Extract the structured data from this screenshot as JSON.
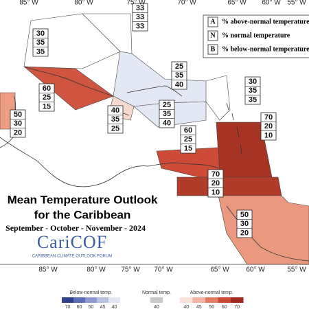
{
  "axis_labels": {
    "top": [
      "85° W",
      "80° W",
      "75° W",
      "70° W",
      "65° W",
      "60° W",
      "55° W"
    ],
    "bottom": [
      "85° W",
      "80° W",
      "75° W",
      "70° W",
      "65° W",
      "60° W",
      "55° W"
    ]
  },
  "key": [
    {
      "letter": "A",
      "text": "% above-normal temperature"
    },
    {
      "letter": "N",
      "text": "% normal temperature"
    },
    {
      "letter": "B",
      "text": "% below-normal temperature"
    }
  ],
  "title": {
    "line1": "Mean Temperature Outlook",
    "line2": "for the Caribbean",
    "period": "September - October - November - 2024"
  },
  "logo": {
    "name": "CariCOF",
    "subtitle": "CARIBBEAN CLIMATE OUTLOOK FORUM"
  },
  "regions": [
    {
      "values": [
        "30",
        "35",
        "35"
      ],
      "color": "#ffffff"
    },
    {
      "values": [
        "33",
        "33",
        "33"
      ],
      "color": "#ffffff"
    },
    {
      "values": [
        "25",
        "35",
        "40"
      ],
      "color": "#e4e8f5"
    },
    {
      "values": [
        "30",
        "35",
        "35"
      ],
      "color": "#ffffff"
    },
    {
      "values": [
        "60",
        "25",
        "15"
      ],
      "color": "#cf5540"
    },
    {
      "values": [
        "40",
        "35",
        "25"
      ],
      "color": "#f7d9ce"
    },
    {
      "values": [
        "25",
        "35",
        "40"
      ],
      "color": "#e4e8f5"
    },
    {
      "values": [
        "50",
        "30",
        "20"
      ],
      "color": "#ec9d84"
    },
    {
      "values": [
        "70",
        "20",
        "10"
      ],
      "color": "#a83426"
    },
    {
      "values": [
        "60",
        "25",
        "15"
      ],
      "color": "#cd4b37"
    },
    {
      "values": [
        "70",
        "20",
        "10"
      ],
      "color": "#b23c2a"
    },
    {
      "values": [
        "50",
        "30",
        "20"
      ],
      "color": "#ea987f"
    }
  ],
  "colorbar": {
    "below": {
      "label": "Below-normal temp.",
      "ticks": [
        "70",
        "60",
        "50",
        "45",
        "40"
      ],
      "colors": [
        "#2e3f8f",
        "#5a6cb5",
        "#8c98cf",
        "#b9c1e3",
        "#e2e6f4"
      ]
    },
    "normal": {
      "label": "Normal temp.",
      "ticks": [
        "40"
      ],
      "colors": [
        "#c8c8c8"
      ]
    },
    "above": {
      "label": "Above-normal temp.",
      "ticks": [
        "40",
        "45",
        "50",
        "60",
        "70"
      ],
      "colors": [
        "#fbe3da",
        "#f2b3a0",
        "#e27c63",
        "#c94a35",
        "#9e2a1e"
      ]
    }
  }
}
